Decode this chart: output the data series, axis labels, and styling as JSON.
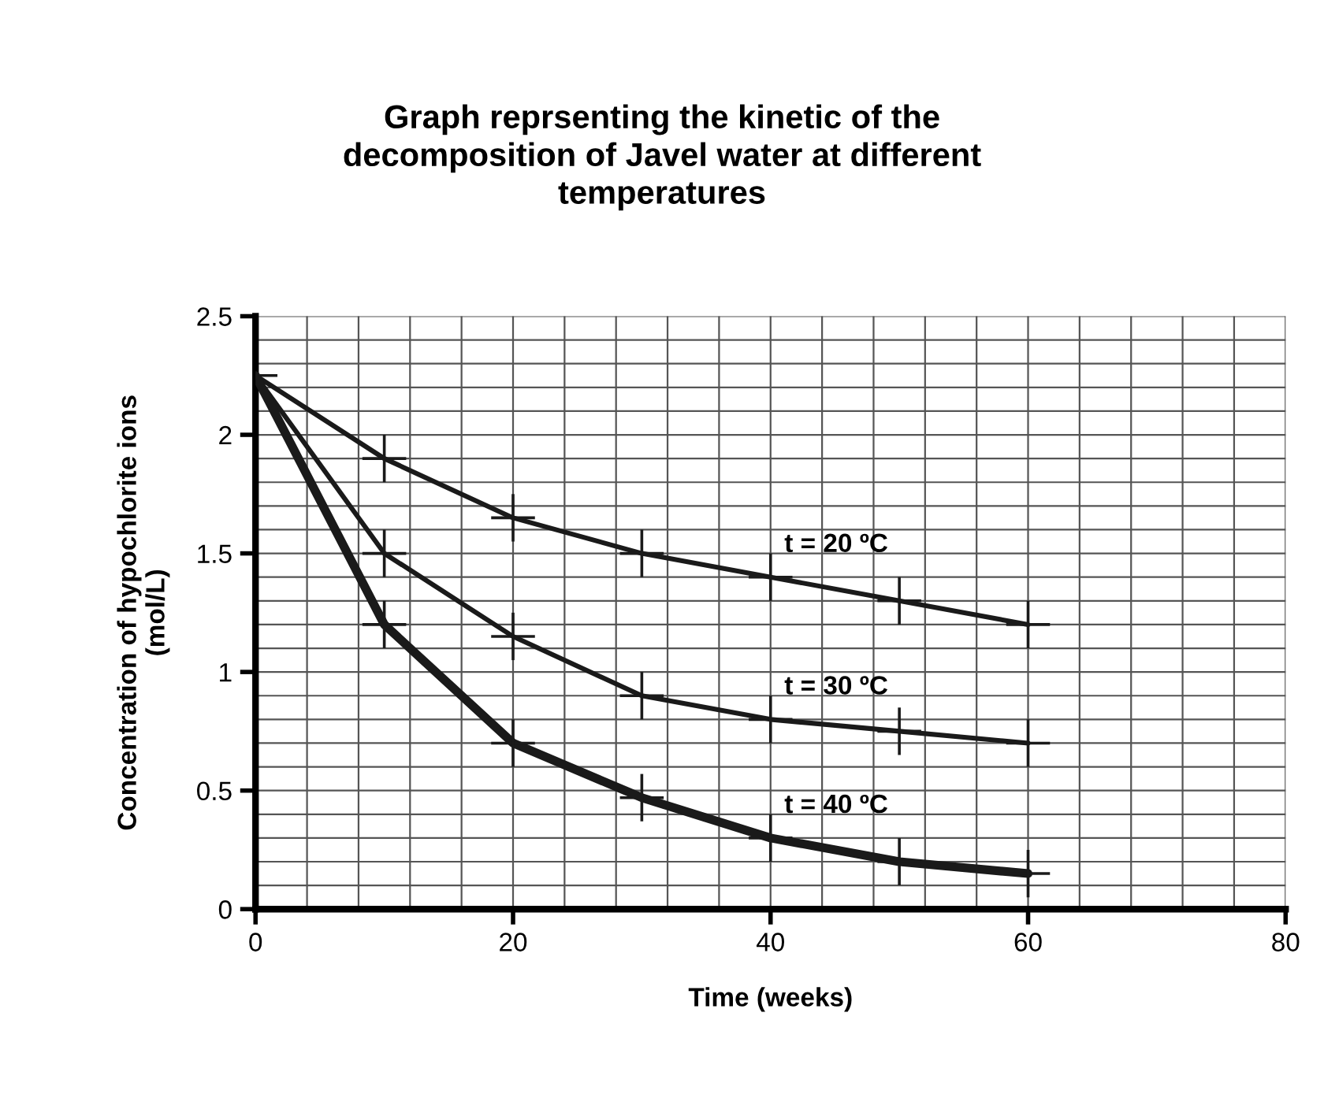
{
  "chart_data": {
    "type": "line",
    "title": "Graph reprsenting the kinetic of the\ndecomposition of Javel water at different\ntemperatures",
    "xlabel": "Time (weeks)",
    "ylabel": "Concentration of hypochlorite ions\n(mol/L)",
    "x": [
      0,
      10,
      20,
      30,
      40,
      50,
      60
    ],
    "series": [
      {
        "name": "t = 20 ºC",
        "color": "#1a1a1a",
        "values": [
          2.25,
          1.9,
          1.65,
          1.5,
          1.4,
          1.3,
          1.2
        ],
        "errors": [
          null,
          0.1,
          0.1,
          0.1,
          0.1,
          0.1,
          0.1
        ],
        "xerrors": [
          1.7,
          1.7,
          1.7,
          1.7,
          1.7,
          1.7,
          1.7
        ]
      },
      {
        "name": "t = 30 ºC",
        "color": "#1a1a1a",
        "values": [
          2.25,
          1.5,
          1.15,
          0.9,
          0.8,
          0.75,
          0.7
        ],
        "errors": [
          null,
          0.1,
          0.1,
          0.1,
          0.1,
          0.1,
          0.1
        ],
        "xerrors": [
          null,
          1.7,
          1.7,
          1.7,
          1.7,
          1.7,
          1.7
        ]
      },
      {
        "name": "t = 40 ºC",
        "color": "#1a1a1a",
        "values": [
          2.25,
          1.2,
          0.7,
          0.47,
          0.3,
          0.2,
          0.15
        ],
        "errors": [
          null,
          0.1,
          0.1,
          0.1,
          0.1,
          0.1,
          0.1
        ],
        "xerrors": [
          null,
          1.7,
          1.7,
          1.7,
          1.7,
          1.7,
          1.7
        ]
      }
    ],
    "xlim": [
      0,
      80
    ],
    "ylim": [
      0,
      2.5
    ],
    "xticks": [
      0,
      20,
      40,
      60,
      80
    ],
    "yticks": [
      0,
      0.5,
      1,
      1.5,
      2,
      2.5
    ],
    "grid": true,
    "line_style": "solid",
    "legend": "right"
  }
}
